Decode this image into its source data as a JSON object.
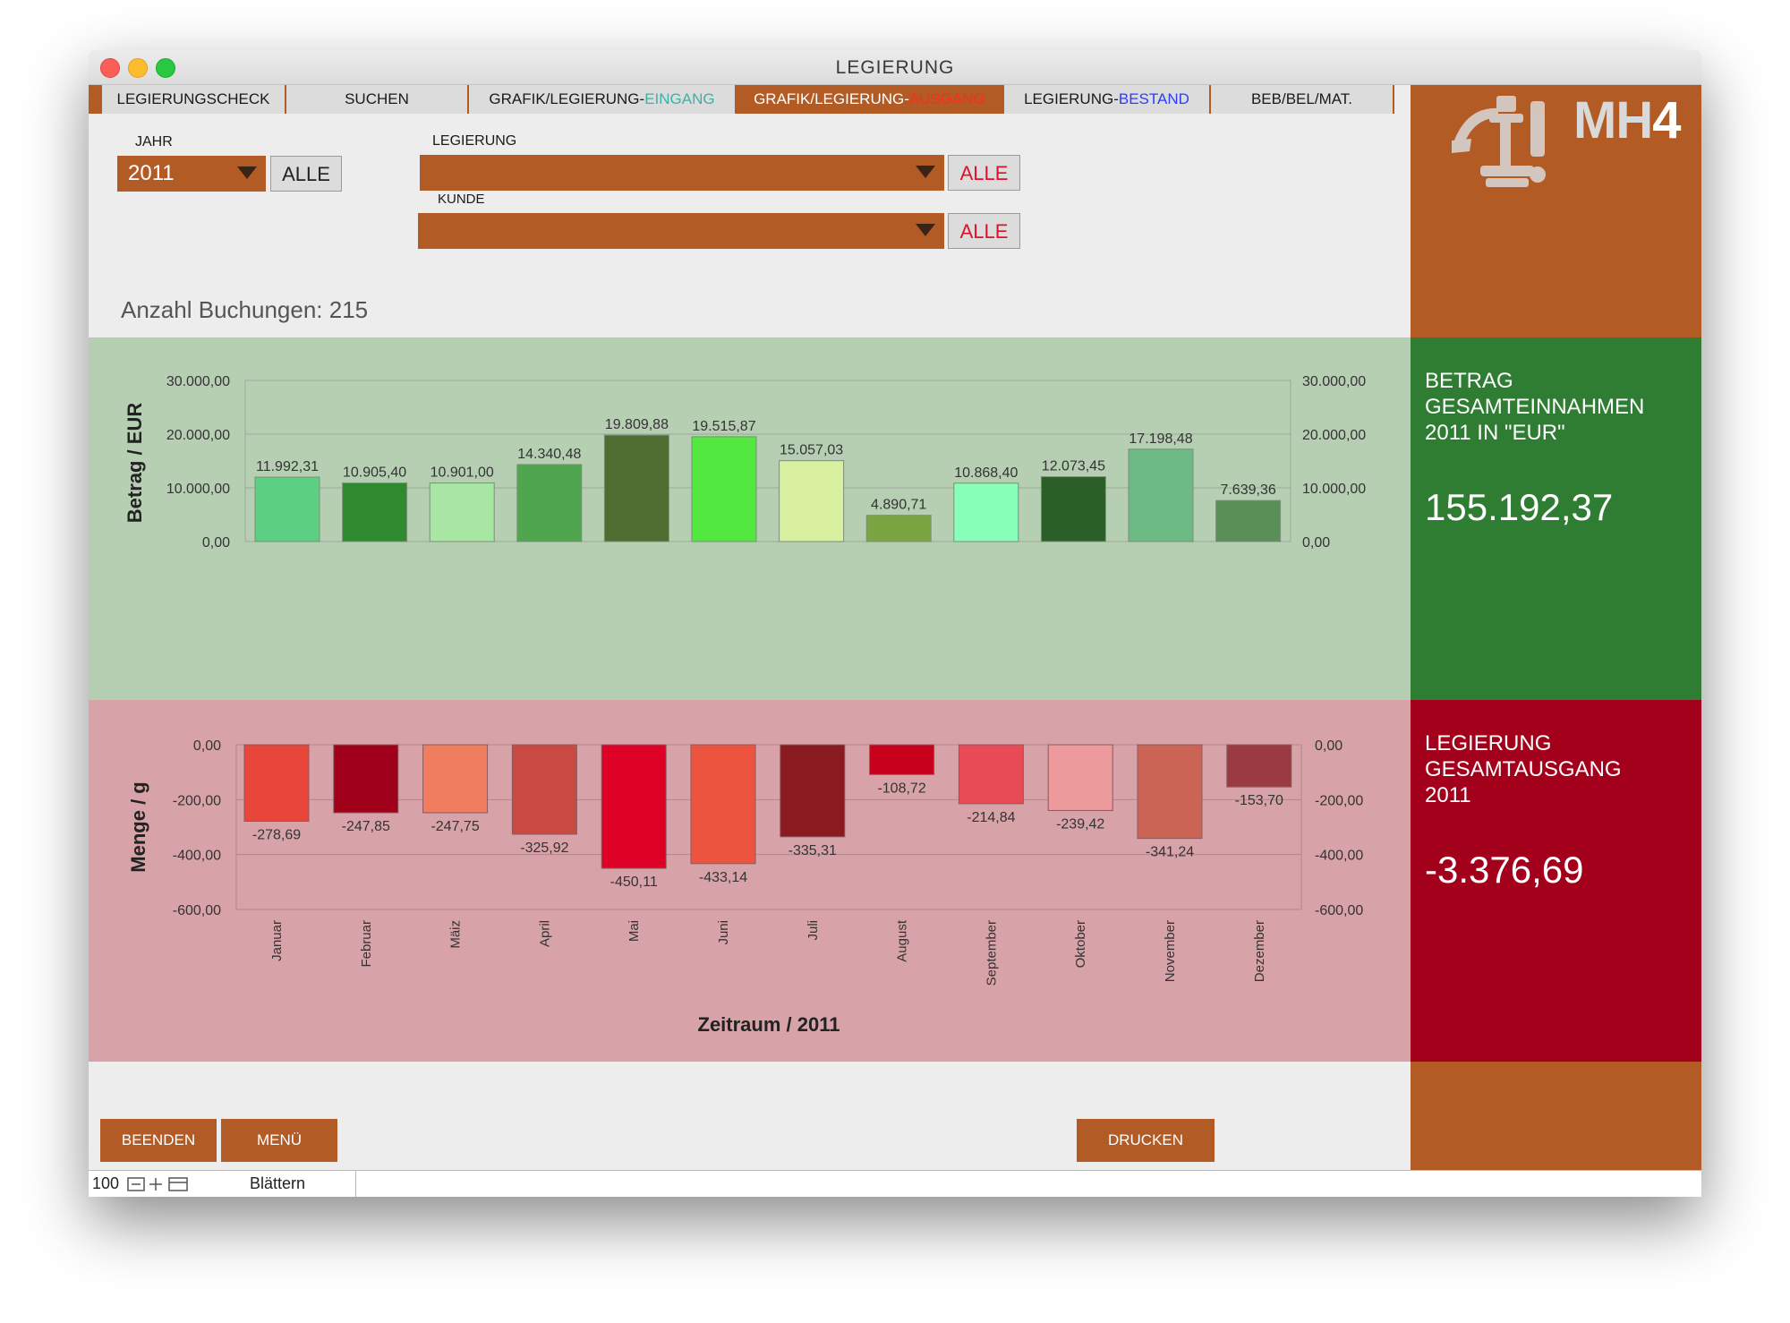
{
  "window": {
    "title": "LEGIERUNG"
  },
  "tabs": [
    {
      "label": "LEGIERUNGSCHECK",
      "accent": ""
    },
    {
      "label": "SUCHEN",
      "accent": ""
    },
    {
      "label": "GRAFIK/LEGIERUNG-",
      "accent": "EINGANG",
      "accent_color": "#3fb0a6"
    },
    {
      "label": "GRAFIK/LEGIERUNG-",
      "accent": "AUSGANG",
      "accent_color": "#ff2a1e"
    },
    {
      "label": "LEGIERUNG-",
      "accent": "BESTAND",
      "accent_color": "#2a3cff"
    },
    {
      "label": "BEB/BEL/MAT.",
      "accent": ""
    }
  ],
  "logo": {
    "text_a": "MH",
    "text_b": "4"
  },
  "filters": {
    "year_label": "JAHR",
    "year_value": "2011",
    "alloy_label": "LEGIERUNG",
    "alloy_value": "",
    "customer_label": "KUNDE",
    "customer_value": "",
    "all_label": "ALLE"
  },
  "count_text": "Anzahl Buchungen: 215",
  "colors": {
    "brand": "#b35b25",
    "green_panel": "#2e7d32",
    "red_panel": "#a3001c"
  },
  "income_panel": {
    "title": "BETRAG GESAMTEINNAHMEN 2011 IN \"EUR\"",
    "value": "155.192,37"
  },
  "outgoing_panel": {
    "title": "LEGIERUNG GESAMTAUSGANG 2011",
    "value": "-3.376,69"
  },
  "chart_data": [
    {
      "type": "bar",
      "ylabel": "Betrag / EUR",
      "ylim": [
        0,
        30000
      ],
      "yticks": [
        "0,00",
        "10.000,00",
        "20.000,00",
        "30.000,00"
      ],
      "categories": [
        "Januar",
        "Februar",
        "Mäiz",
        "April",
        "Mai",
        "Juni",
        "Juli",
        "August",
        "September",
        "Oktober",
        "November",
        "Dezember"
      ],
      "values": [
        11992.31,
        10905.4,
        10901.0,
        14340.48,
        19809.88,
        19515.87,
        15057.03,
        4890.71,
        10868.4,
        12073.45,
        17198.48,
        7639.36
      ],
      "data_labels": [
        "11.992,31",
        "10.905,40",
        "10.901,00",
        "14.340,48",
        "19.809,88",
        "19.515,87",
        "15.057,03",
        "4.890,71",
        "10.868,40",
        "12.073,45",
        "17.198,48",
        "7.639,36"
      ],
      "bar_colors": [
        "#5ccf82",
        "#2f8a2f",
        "#a7e6a3",
        "#4fa64f",
        "#4d6e30",
        "#52e83f",
        "#d8f0a0",
        "#7ba543",
        "#88ffb9",
        "#2a6027",
        "#6dba85",
        "#5a8f58"
      ]
    },
    {
      "type": "bar",
      "ylabel": "Menge / g",
      "xlabel": "Zeitraum / 2011",
      "ylim": [
        -600,
        0
      ],
      "yticks": [
        "0,00",
        "-200,00",
        "-400,00",
        "-600,00"
      ],
      "categories": [
        "Januar",
        "Februar",
        "Mäiz",
        "April",
        "Mai",
        "Juni",
        "Juli",
        "August",
        "September",
        "Oktober",
        "November",
        "Dezember"
      ],
      "values": [
        -278.69,
        -247.85,
        -247.75,
        -325.92,
        -450.11,
        -433.14,
        -335.31,
        -108.72,
        -214.84,
        -239.42,
        -341.24,
        -153.7
      ],
      "data_labels": [
        "-278,69",
        "-247,85",
        "-247,75",
        "-325,92",
        "-450,11",
        "-433,14",
        "-335,31",
        "-108,72",
        "-214,84",
        "-239,42",
        "-341,24",
        "-153,70"
      ],
      "bar_colors": [
        "#e8463a",
        "#a1001b",
        "#f07d5e",
        "#c84a42",
        "#df0025",
        "#ec5440",
        "#891a1f",
        "#c9001c",
        "#e84a56",
        "#ec9a9c",
        "#cc6456",
        "#9c3a44"
      ]
    }
  ],
  "actions": {
    "quit": "BEENDEN",
    "menu": "MENÜ",
    "print": "DRUCKEN"
  },
  "status": {
    "zoom": "100",
    "mode": "Blättern"
  }
}
